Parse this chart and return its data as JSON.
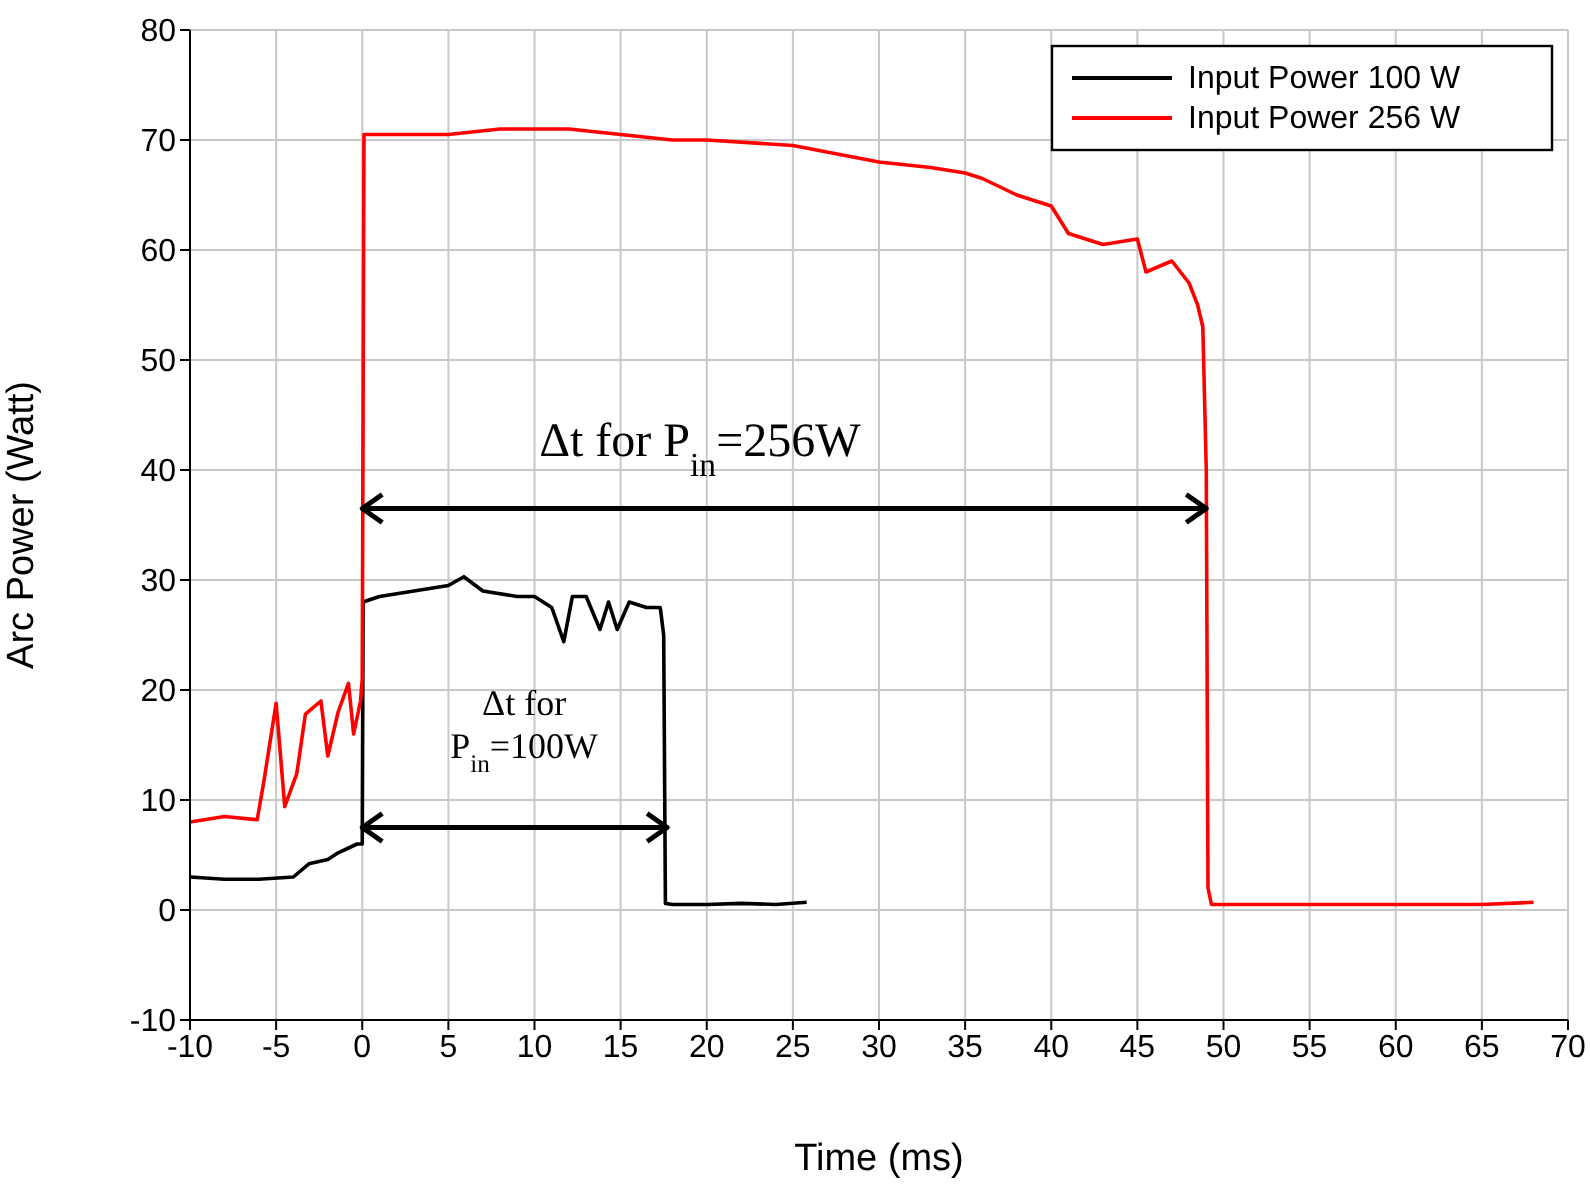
{
  "chart_data": {
    "type": "line",
    "xlabel": "Time (ms)",
    "ylabel": "Arc Power (Watt)",
    "xlim": [
      -10,
      70
    ],
    "xticks": [
      -10,
      -5,
      0,
      5,
      10,
      15,
      20,
      25,
      30,
      35,
      40,
      45,
      50,
      55,
      60,
      65,
      70
    ],
    "ylim": [
      -10,
      80
    ],
    "yticks": [
      -10,
      0,
      10,
      20,
      30,
      40,
      50,
      60,
      70,
      80
    ],
    "grid": true,
    "legend": "top right",
    "marker": "none",
    "line_style": "solid",
    "series": [
      {
        "name": "Input Power 100 W",
        "color": "#000000",
        "x": [
          -10,
          -8,
          -6,
          -4,
          -3.1,
          -2,
          -1.4,
          -0.3,
          0,
          0.05,
          1,
          3,
          5,
          5.9,
          7,
          9,
          10,
          11,
          11.7,
          12.2,
          13,
          13.8,
          14.3,
          14.8,
          15.5,
          16.5,
          17.3,
          17.5,
          17.6,
          18,
          20,
          22,
          24,
          25.8
        ],
        "values": [
          3,
          2.8,
          2.8,
          3,
          4.2,
          4.6,
          5.2,
          6,
          6,
          28,
          28.5,
          29,
          29.5,
          30.3,
          29,
          28.5,
          28.5,
          27.5,
          24.4,
          28.5,
          28.5,
          25.5,
          28,
          25.5,
          28,
          27.5,
          27.5,
          25,
          0.6,
          0.5,
          0.5,
          0.6,
          0.5,
          0.7
        ]
      },
      {
        "name": "Input Power 256 W",
        "color": "#ff0000",
        "x": [
          -10,
          -8,
          -6.1,
          -5.7,
          -5,
          -4.5,
          -3.8,
          -3.3,
          -2.4,
          -2,
          -1.4,
          -0.8,
          -0.5,
          -0.1,
          0,
          0.1,
          2,
          5,
          8,
          12,
          15,
          18,
          20,
          25,
          30,
          33,
          35,
          36,
          38,
          40,
          41,
          43,
          45,
          45.5,
          47,
          48,
          48.5,
          48.8,
          49,
          49.1,
          49.3,
          52,
          55,
          60,
          65,
          68
        ],
        "values": [
          8,
          8.5,
          8.2,
          11.8,
          18.8,
          9.4,
          12.4,
          17.8,
          19,
          14,
          18,
          20.6,
          16,
          19,
          21,
          70.5,
          70.5,
          70.5,
          71,
          71,
          70.5,
          70,
          70,
          69.5,
          68,
          67.5,
          67,
          66.5,
          65,
          64,
          61.5,
          60.5,
          61,
          58,
          59,
          57,
          55,
          53,
          40,
          2,
          0.5,
          0.5,
          0.5,
          0.5,
          0.5,
          0.7
        ]
      }
    ],
    "annotations": [
      "Δt for P$_{in}$=256W",
      "Δt for\nP$_{in}$=100W"
    ]
  }
}
